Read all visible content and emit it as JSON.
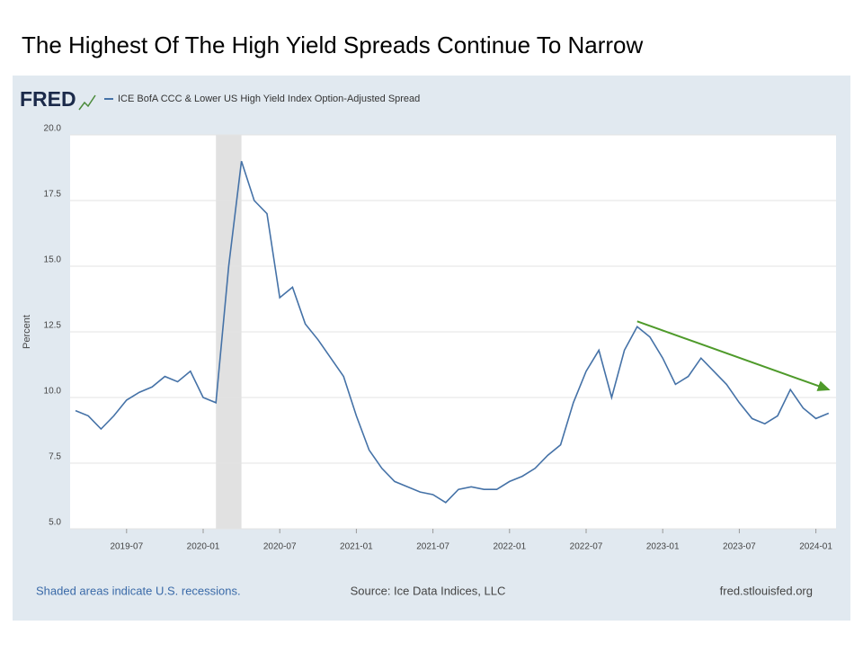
{
  "slide_title": "The Highest Of The High Yield Spreads Continue To Narrow",
  "chart_data": {
    "type": "line",
    "logo": "FRED",
    "ylabel": "Percent",
    "footer_left": "Shaded areas indicate U.S. recessions.",
    "source": "Source: Ice Data Indices, LLC",
    "footer_right": "fred.stlouisfed.org",
    "x": [
      "2019-03",
      "2019-04",
      "2019-05",
      "2019-06",
      "2019-07",
      "2019-08",
      "2019-09",
      "2019-10",
      "2019-11",
      "2019-12",
      "2020-01",
      "2020-02",
      "2020-03",
      "2020-04",
      "2020-05",
      "2020-06",
      "2020-07",
      "2020-08",
      "2020-09",
      "2020-10",
      "2020-11",
      "2020-12",
      "2021-01",
      "2021-02",
      "2021-03",
      "2021-04",
      "2021-05",
      "2021-06",
      "2021-07",
      "2021-08",
      "2021-09",
      "2021-10",
      "2021-11",
      "2021-12",
      "2022-01",
      "2022-02",
      "2022-03",
      "2022-04",
      "2022-05",
      "2022-06",
      "2022-07",
      "2022-08",
      "2022-09",
      "2022-10",
      "2022-11",
      "2022-12",
      "2023-01",
      "2023-02",
      "2023-03",
      "2023-04",
      "2023-05",
      "2023-06",
      "2023-07",
      "2023-08",
      "2023-09",
      "2023-10",
      "2023-11",
      "2023-12",
      "2024-01",
      "2024-02"
    ],
    "series": [
      {
        "name": "ICE BofA CCC & Lower US High Yield Index Option-Adjusted Spread",
        "color": "#4572a7",
        "values": [
          9.5,
          9.3,
          8.8,
          9.3,
          9.9,
          10.2,
          10.4,
          10.8,
          10.6,
          11.0,
          10.0,
          9.8,
          15.0,
          19.0,
          17.5,
          17.0,
          13.8,
          14.2,
          12.8,
          12.2,
          11.5,
          10.8,
          9.3,
          8.0,
          7.3,
          6.8,
          6.6,
          6.4,
          6.3,
          6.0,
          6.5,
          6.6,
          6.5,
          6.5,
          6.8,
          7.0,
          7.3,
          7.8,
          8.2,
          9.8,
          11.0,
          11.8,
          10.0,
          11.8,
          12.7,
          12.3,
          11.5,
          10.5,
          10.8,
          11.5,
          11.0,
          10.5,
          9.8,
          9.2,
          9.0,
          9.3,
          10.3,
          9.6,
          9.2,
          9.4
        ]
      }
    ],
    "xlim": [
      "2019-03",
      "2024-03"
    ],
    "xticks": [
      "2019-07",
      "2020-01",
      "2020-07",
      "2021-01",
      "2021-07",
      "2022-01",
      "2022-07",
      "2023-01",
      "2023-07",
      "2024-01"
    ],
    "ylim": [
      5,
      20
    ],
    "yticks": [
      {
        "value": 5,
        "label": "5.0"
      },
      {
        "value": 7.5,
        "label": "7.5"
      },
      {
        "value": 10,
        "label": "10.0"
      },
      {
        "value": 12.5,
        "label": "12.5"
      },
      {
        "value": 15,
        "label": "15.0"
      },
      {
        "value": 17.5,
        "label": "17.5"
      },
      {
        "value": 20,
        "label": "20.0"
      }
    ],
    "grid": true,
    "recessions": [
      [
        "2020-02",
        "2020-04"
      ]
    ],
    "trend_arrow": {
      "x": [
        "2022-11",
        "2024-02"
      ],
      "y": [
        12.9,
        10.3
      ],
      "color": "#4e9a2a"
    }
  }
}
